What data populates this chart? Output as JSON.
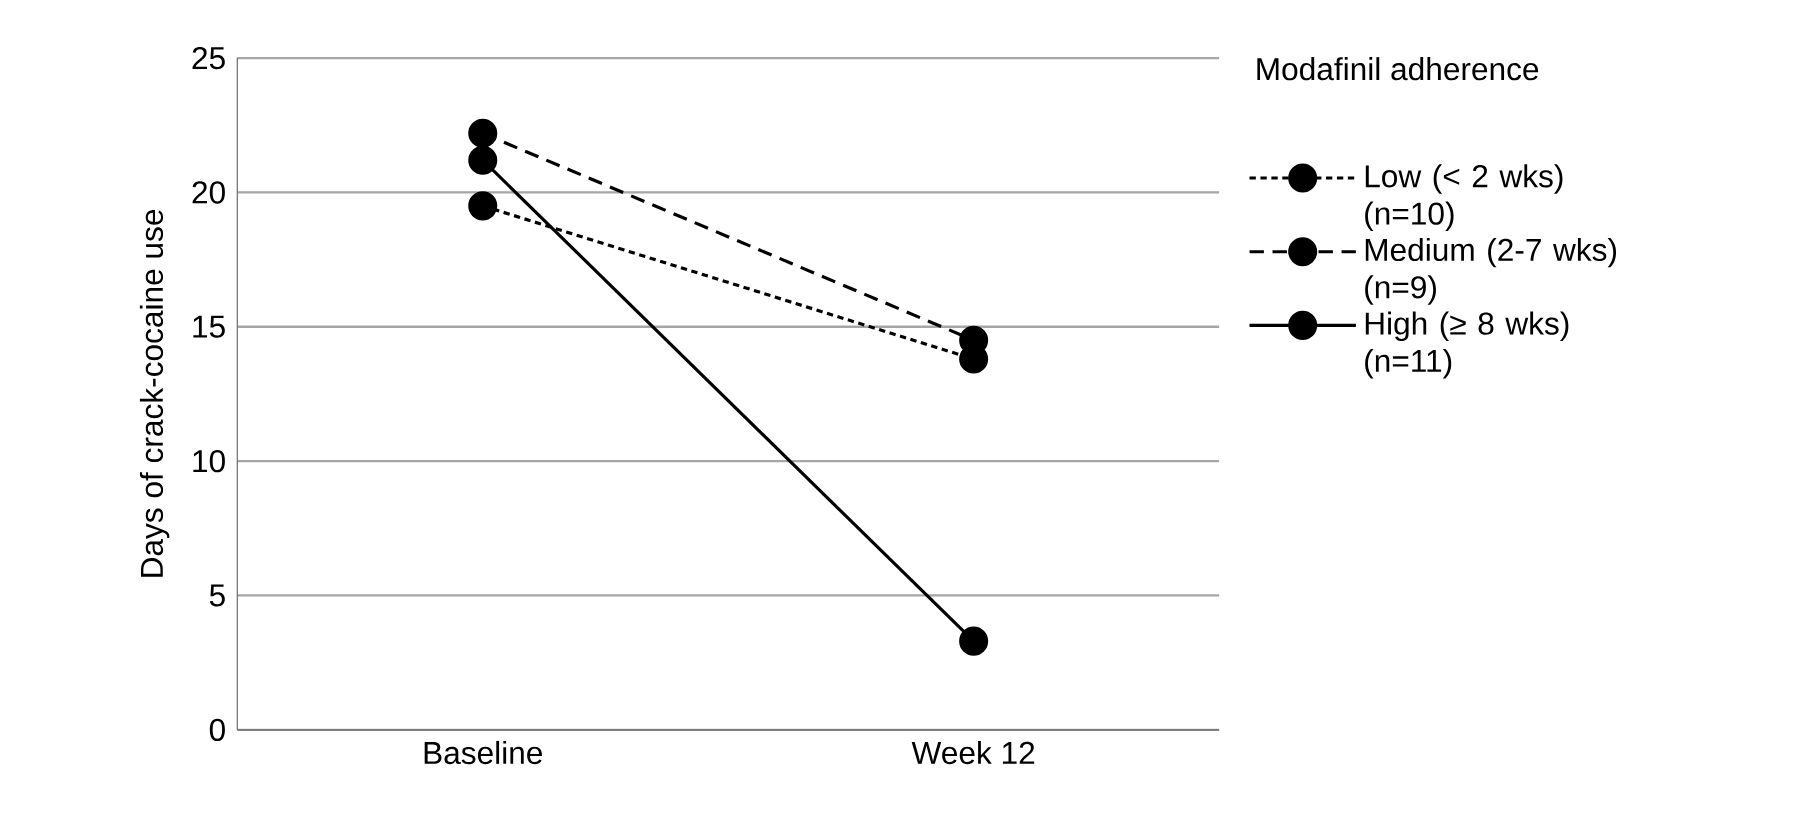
{
  "chart_data": {
    "type": "line",
    "ylabel": "Days of crack-cocaine use",
    "legend_title": "Modafinil adherence",
    "categories": [
      "Baseline",
      "Week 12"
    ],
    "series": [
      {
        "name": "Low (< 2 wks) (n=10)",
        "color": "#000000",
        "values": [
          19.5,
          13.8
        ],
        "line_style": "dotted"
      },
      {
        "name": "Medium (2-7 wks) (n=9)",
        "color": "#000000",
        "values": [
          22.2,
          14.5
        ],
        "line_style": "dashed"
      },
      {
        "name": "High (≥ 8 wks) (n=11)",
        "color": "#000000",
        "values": [
          21.2,
          3.3
        ],
        "line_style": "solid"
      }
    ],
    "ylim": [
      0,
      25
    ],
    "yticks": [
      0,
      5,
      10,
      15,
      20,
      25
    ],
    "grid": "y",
    "legend": "right",
    "marker": "circle"
  }
}
